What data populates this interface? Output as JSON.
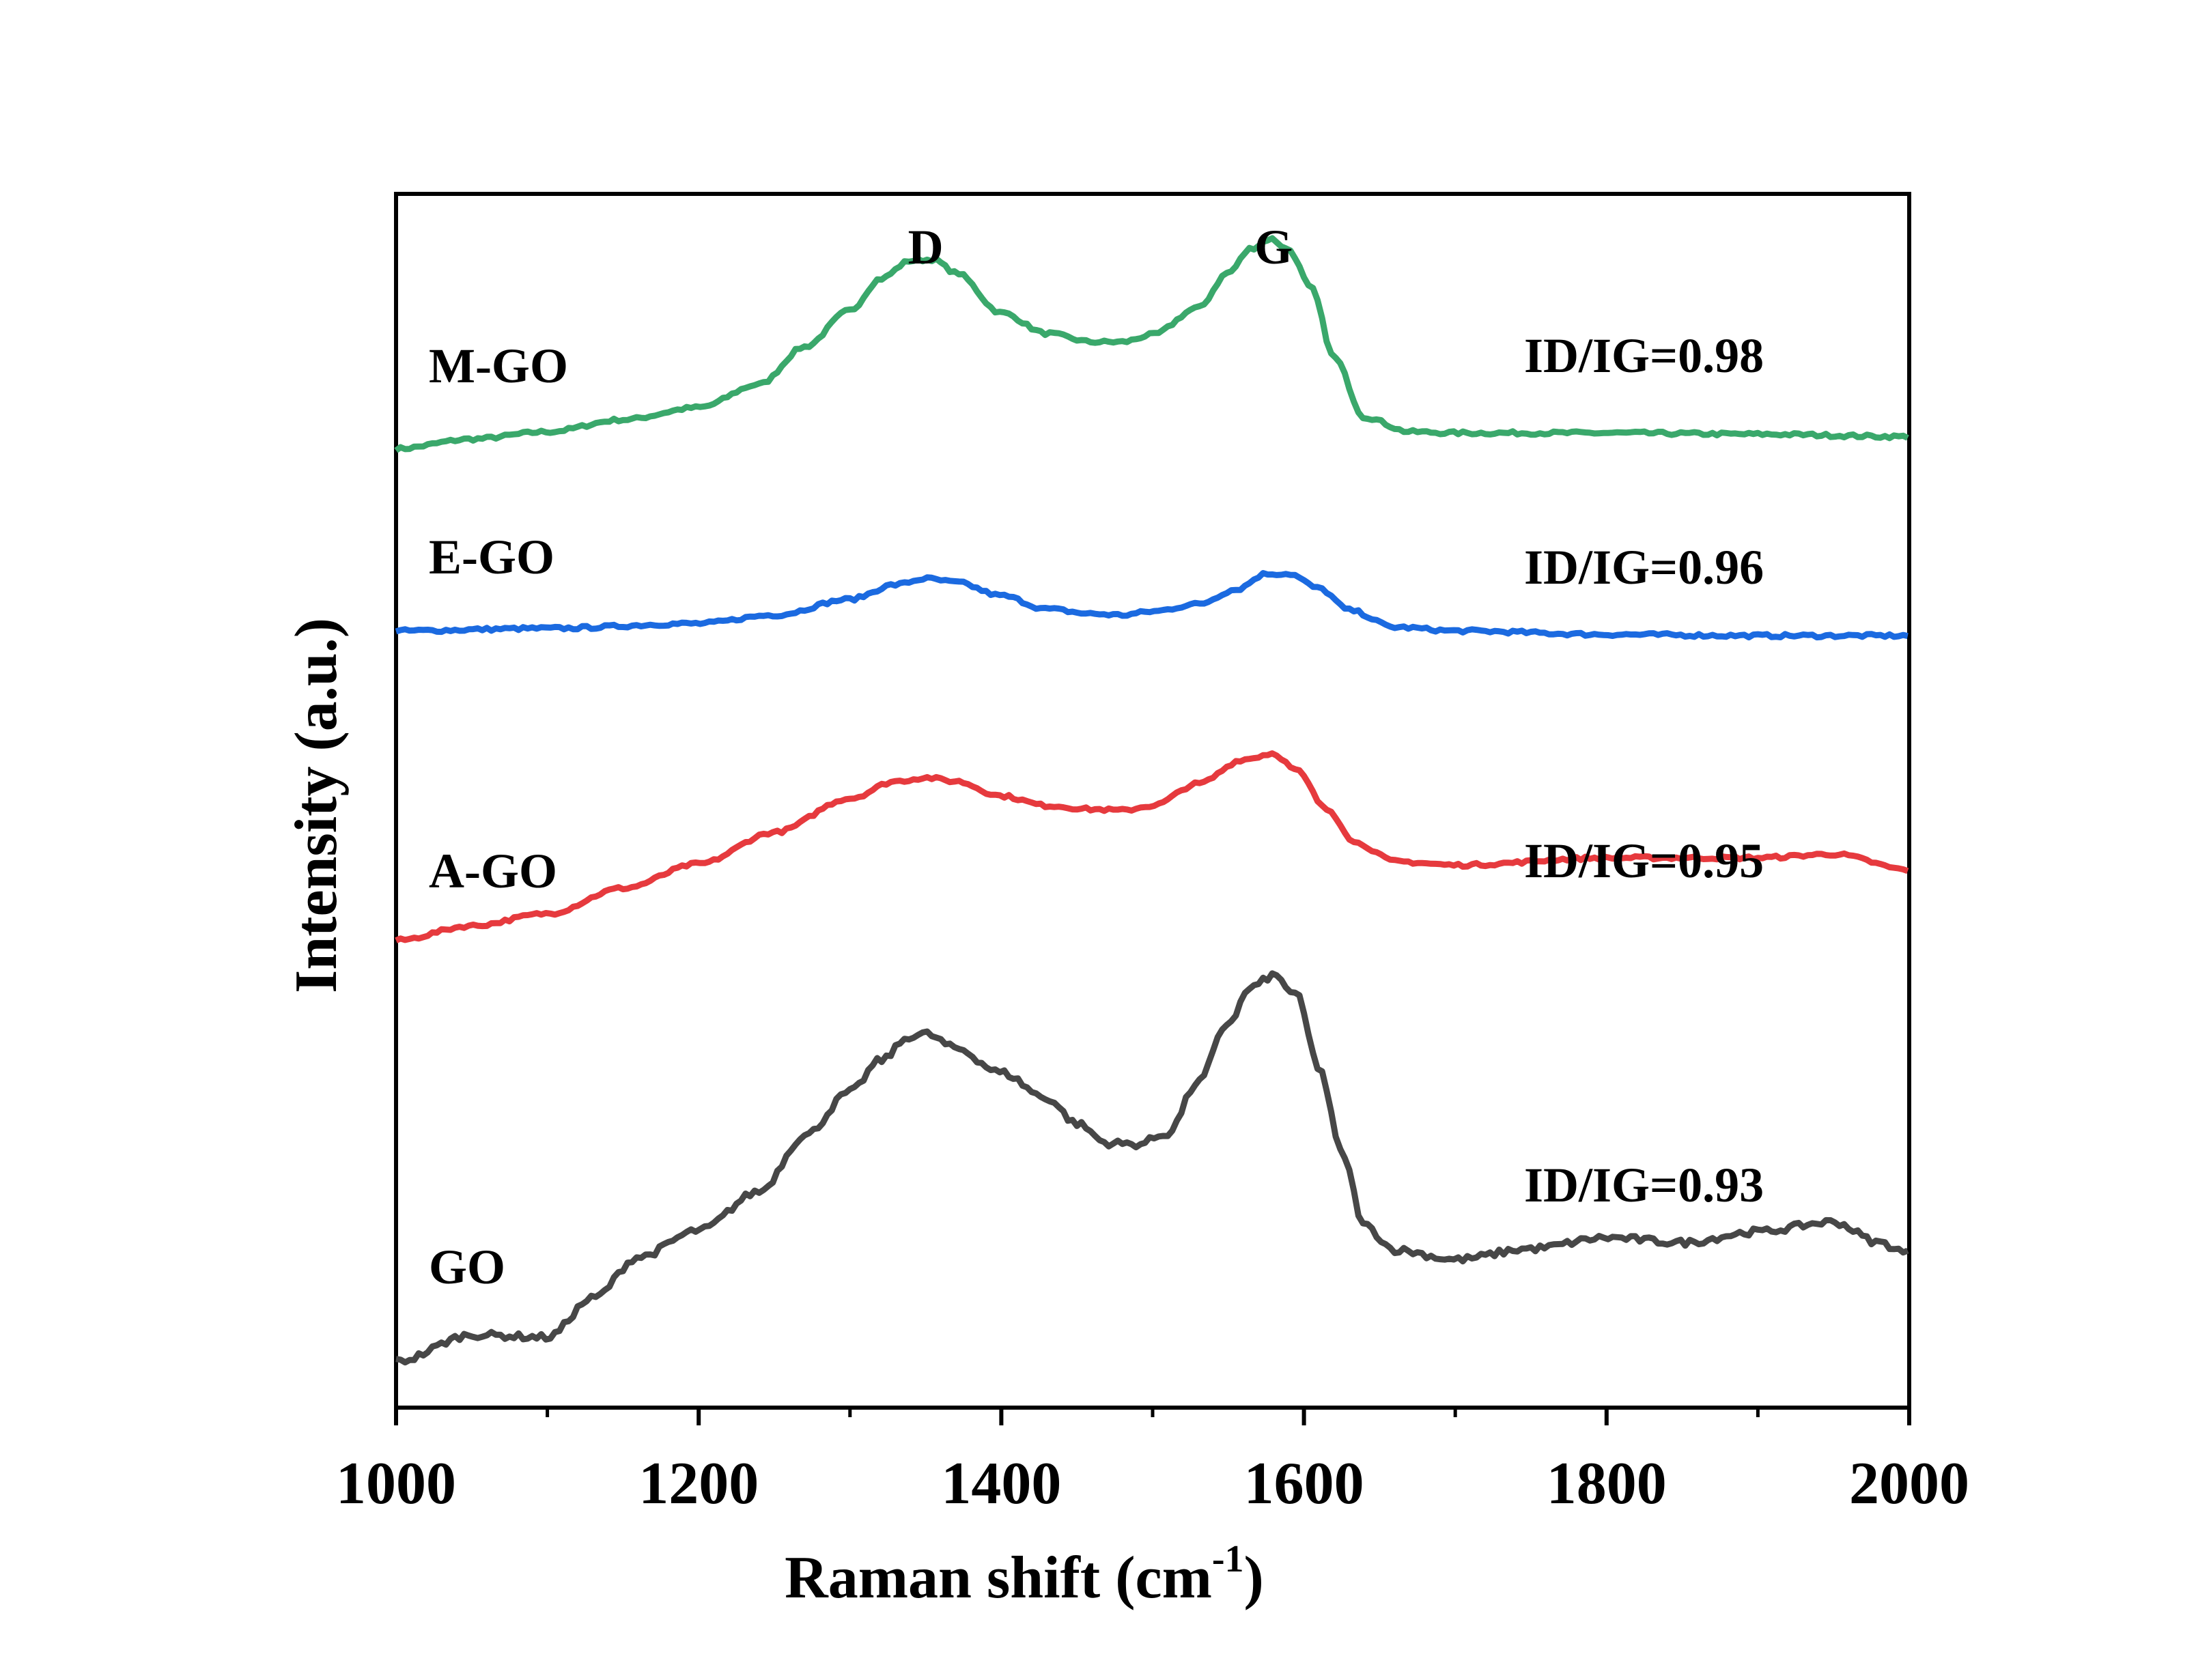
{
  "chart_data": {
    "type": "line",
    "title": "",
    "xlabel": "Raman shift (cm",
    "xlabel_sup": "-1",
    "xlabel_close": ")",
    "ylabel": "Intensity (a.u.)",
    "xlim": [
      1000,
      2000
    ],
    "x_ticks": [
      1000,
      1200,
      1400,
      1600,
      1800,
      2000
    ],
    "x_minor_ticks": [
      1100,
      1300,
      1500,
      1700,
      1900
    ],
    "ylim": [
      0,
      100
    ],
    "y_ticks_shown": false,
    "grid": false,
    "legend": "none (series labelled directly on plot)",
    "peak_labels": [
      {
        "text": "D",
        "x": 1350
      },
      {
        "text": "G",
        "x": 1580
      }
    ],
    "series": [
      {
        "name": "M-GO",
        "color": "#3aa86b",
        "ratio_text": "ID/IG=0.98",
        "x": [
          1000,
          1050,
          1100,
          1150,
          1200,
          1240,
          1270,
          1300,
          1320,
          1340,
          1355,
          1370,
          1400,
          1430,
          1460,
          1480,
          1500,
          1530,
          1550,
          1565,
          1578,
          1590,
          1605,
          1620,
          1640,
          1670,
          1700,
          1800,
          1900,
          2000
        ],
        "y": [
          79.0,
          79.8,
          80.4,
          81.4,
          82.4,
          84.3,
          87.4,
          90.4,
          93.0,
          94.5,
          94.6,
          93.5,
          90.2,
          88.5,
          87.8,
          87.8,
          88.4,
          90.6,
          93.5,
          95.5,
          96.3,
          95.4,
          92.2,
          86.5,
          81.6,
          80.4,
          80.3,
          80.3,
          80.2,
          80.0
        ]
      },
      {
        "name": "E-GO",
        "color": "#1b6ae0",
        "ratio_text": "ID/IG=0.96",
        "x": [
          1000,
          1100,
          1200,
          1250,
          1300,
          1330,
          1350,
          1370,
          1400,
          1430,
          1460,
          1480,
          1500,
          1530,
          1555,
          1575,
          1590,
          1610,
          1630,
          1660,
          1700,
          1800,
          1900,
          2000
        ],
        "y": [
          64.0,
          64.2,
          64.6,
          65.3,
          66.6,
          67.8,
          68.3,
          68.0,
          66.9,
          65.8,
          65.4,
          65.3,
          65.6,
          66.2,
          67.4,
          68.7,
          68.7,
          67.5,
          65.7,
          64.3,
          64.0,
          63.7,
          63.6,
          63.6
        ]
      },
      {
        "name": "A-GO",
        "color": "#e63a3e",
        "ratio_text": "ID/IG=0.95",
        "x": [
          1000,
          1050,
          1100,
          1150,
          1200,
          1250,
          1300,
          1330,
          1350,
          1370,
          1400,
          1430,
          1460,
          1480,
          1500,
          1530,
          1560,
          1580,
          1595,
          1615,
          1635,
          1660,
          1700,
          1800,
          1900,
          1950,
          2000
        ],
        "y": [
          38.5,
          39.7,
          40.7,
          42.8,
          44.8,
          47.4,
          50.2,
          51.6,
          51.9,
          51.6,
          50.4,
          49.6,
          49.3,
          49.2,
          49.6,
          51.4,
          53.4,
          53.9,
          52.5,
          49.3,
          46.5,
          45.0,
          44.7,
          45.3,
          45.3,
          45.6,
          44.3
        ]
      },
      {
        "name": "GO",
        "color": "#474747",
        "ratio_text": "ID/IG=0.93",
        "x": [
          1000,
          1050,
          1100,
          1130,
          1160,
          1200,
          1240,
          1270,
          1300,
          1320,
          1340,
          1350,
          1370,
          1400,
          1430,
          1450,
          1470,
          1490,
          1510,
          1530,
          1550,
          1565,
          1580,
          1595,
          1610,
          1625,
          1640,
          1660,
          1700,
          1750,
          1800,
          1850,
          1900,
          1950,
          1980,
          2000
        ],
        "y": [
          3.8,
          6.0,
          5.8,
          9.0,
          12.4,
          14.6,
          17.8,
          22.4,
          26.0,
          28.6,
          30.6,
          30.8,
          29.6,
          27.6,
          25.5,
          23.4,
          21.8,
          21.7,
          22.6,
          26.8,
          31.7,
          34.6,
          35.6,
          34.0,
          28.0,
          21.0,
          15.0,
          13.0,
          12.2,
          13.1,
          14.0,
          13.6,
          14.5,
          15.3,
          13.6,
          12.7
        ]
      }
    ]
  }
}
